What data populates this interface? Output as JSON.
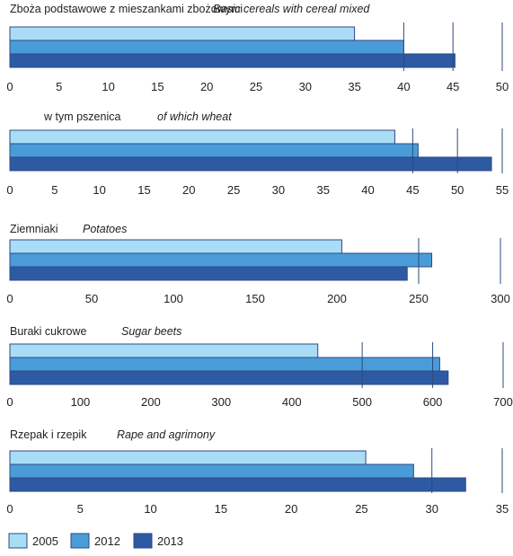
{
  "colors": {
    "2005": "#a9ddf6",
    "2012": "#4a9cd8",
    "2013": "#2d5aa3",
    "bar_border": "#2c4a83",
    "grid": "#2b4b80"
  },
  "legend": [
    {
      "label": "2005",
      "color": "#a9ddf6"
    },
    {
      "label": "2012",
      "color": "#4a9cd8"
    },
    {
      "label": "2013",
      "color": "#2d5aa3"
    }
  ],
  "chart_data": [
    {
      "type": "bar",
      "orientation": "horizontal",
      "title": "Zboża podstawowe z mieszankami zbożowymi",
      "title_en": "Basic cereals with cereal mixed",
      "series": [
        {
          "name": "2005",
          "value": 35.0
        },
        {
          "name": "2012",
          "value": 40.0
        },
        {
          "name": "2013",
          "value": 45.2
        }
      ],
      "xlim": [
        0,
        50
      ],
      "ticks": [
        0,
        5,
        10,
        15,
        20,
        25,
        30,
        35,
        40,
        45,
        50
      ],
      "gridlines": [
        40,
        45,
        50
      ]
    },
    {
      "type": "bar",
      "orientation": "horizontal",
      "title": "w tym pszenica",
      "title_en": "of which wheat",
      "series": [
        {
          "name": "2005",
          "value": 43.0
        },
        {
          "name": "2012",
          "value": 45.6
        },
        {
          "name": "2013",
          "value": 53.8
        }
      ],
      "xlim": [
        0,
        55
      ],
      "ticks": [
        0,
        5,
        10,
        15,
        20,
        25,
        30,
        35,
        40,
        45,
        50,
        55
      ],
      "gridlines": [
        45,
        50,
        55
      ]
    },
    {
      "type": "bar",
      "orientation": "horizontal",
      "title": "Ziemniaki",
      "title_en": "Potatoes",
      "series": [
        {
          "name": "2005",
          "value": 203
        },
        {
          "name": "2012",
          "value": 258
        },
        {
          "name": "2013",
          "value": 243
        }
      ],
      "xlim": [
        0,
        300
      ],
      "ticks": [
        0,
        50,
        100,
        150,
        200,
        250,
        300
      ],
      "gridlines": [
        250,
        300
      ]
    },
    {
      "type": "bar",
      "orientation": "horizontal",
      "title": "Buraki cukrowe",
      "title_en": "Sugar beets",
      "series": [
        {
          "name": "2005",
          "value": 437
        },
        {
          "name": "2012",
          "value": 610
        },
        {
          "name": "2013",
          "value": 622
        }
      ],
      "xlim": [
        0,
        700
      ],
      "ticks": [
        0,
        100,
        200,
        300,
        400,
        500,
        600,
        700
      ],
      "gridlines": [
        500,
        600,
        700
      ]
    },
    {
      "type": "bar",
      "orientation": "horizontal",
      "title": "Rzepak i rzepik",
      "title_en": "Rape and agrimony",
      "series": [
        {
          "name": "2005",
          "value": 25.3
        },
        {
          "name": "2012",
          "value": 28.7
        },
        {
          "name": "2013",
          "value": 32.4
        }
      ],
      "xlim": [
        0,
        35
      ],
      "ticks": [
        0,
        5,
        10,
        15,
        20,
        25,
        30,
        35
      ],
      "gridlines": [
        30,
        35
      ]
    }
  ]
}
